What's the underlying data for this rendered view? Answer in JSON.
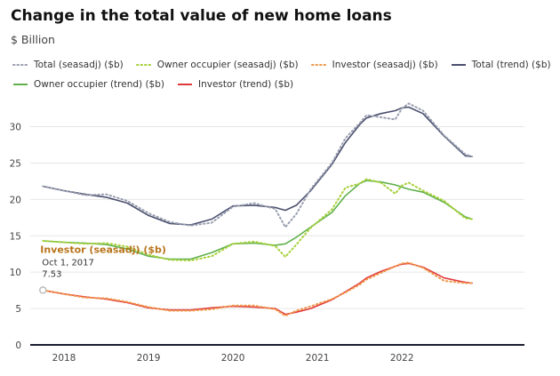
{
  "page": {
    "title": "Change in the total value of new home loans",
    "subtitle": "$ Billion"
  },
  "tooltip": {
    "series": "Investor (seasadj) ($b)",
    "date": "Oct 1, 2017",
    "value": "7.53"
  },
  "chart_data": {
    "type": "line",
    "ylim": [
      0,
      33
    ],
    "xlim": [
      2017.6,
      2023.45
    ],
    "y_ticks": [
      0,
      5,
      10,
      15,
      20,
      25,
      30
    ],
    "x_ticks": [
      {
        "value": 2018.0,
        "label": "2018"
      },
      {
        "value": 2019.0,
        "label": "2019"
      },
      {
        "value": 2020.0,
        "label": "2020"
      },
      {
        "value": 2021.0,
        "label": "2021"
      },
      {
        "value": 2022.0,
        "label": "2022"
      }
    ],
    "grid": true,
    "legend": "top",
    "series": [
      {
        "name": "Total (seasadj) ($b)",
        "color": "#9a9fb0",
        "style": "dotted",
        "points": [
          [
            2017.75,
            21.8
          ],
          [
            2018.0,
            21.2
          ],
          [
            2018.25,
            20.6
          ],
          [
            2018.5,
            20.7
          ],
          [
            2018.75,
            19.8
          ],
          [
            2019.0,
            18.1
          ],
          [
            2019.25,
            16.9
          ],
          [
            2019.5,
            16.4
          ],
          [
            2019.75,
            16.8
          ],
          [
            2020.0,
            19.0
          ],
          [
            2020.25,
            19.5
          ],
          [
            2020.5,
            18.7
          ],
          [
            2020.62,
            16.2
          ],
          [
            2020.75,
            18.0
          ],
          [
            2020.92,
            21.4
          ],
          [
            2021.17,
            25.0
          ],
          [
            2021.33,
            28.4
          ],
          [
            2021.5,
            30.5
          ],
          [
            2021.58,
            31.6
          ],
          [
            2021.75,
            31.3
          ],
          [
            2021.92,
            31.0
          ],
          [
            2022.0,
            32.5
          ],
          [
            2022.08,
            33.2
          ],
          [
            2022.25,
            32.2
          ],
          [
            2022.5,
            28.8
          ],
          [
            2022.75,
            26.2
          ],
          [
            2022.83,
            25.9
          ]
        ]
      },
      {
        "name": "Owner occupier (seasadj) ($b)",
        "color": "#a8d13a",
        "style": "dotted",
        "points": [
          [
            2017.75,
            14.3
          ],
          [
            2018.0,
            14.1
          ],
          [
            2018.25,
            13.9
          ],
          [
            2018.5,
            14.0
          ],
          [
            2018.75,
            13.5
          ],
          [
            2019.0,
            12.4
          ],
          [
            2019.25,
            11.7
          ],
          [
            2019.5,
            11.6
          ],
          [
            2019.75,
            12.2
          ],
          [
            2020.0,
            13.9
          ],
          [
            2020.25,
            14.2
          ],
          [
            2020.5,
            13.6
          ],
          [
            2020.62,
            12.1
          ],
          [
            2020.75,
            13.8
          ],
          [
            2020.92,
            16.1
          ],
          [
            2021.17,
            18.6
          ],
          [
            2021.33,
            21.6
          ],
          [
            2021.5,
            22.2
          ],
          [
            2021.58,
            22.8
          ],
          [
            2021.75,
            22.3
          ],
          [
            2021.92,
            20.8
          ],
          [
            2022.0,
            21.9
          ],
          [
            2022.08,
            22.3
          ],
          [
            2022.25,
            21.2
          ],
          [
            2022.5,
            19.8
          ],
          [
            2022.75,
            17.4
          ],
          [
            2022.83,
            17.3
          ]
        ]
      },
      {
        "name": "Investor (seasadj) ($b)",
        "color": "#f0974a",
        "style": "dotted",
        "points": [
          [
            2017.75,
            7.53
          ],
          [
            2018.0,
            7.0
          ],
          [
            2018.25,
            6.5
          ],
          [
            2018.5,
            6.4
          ],
          [
            2018.75,
            5.9
          ],
          [
            2019.0,
            5.2
          ],
          [
            2019.25,
            4.7
          ],
          [
            2019.5,
            4.7
          ],
          [
            2019.75,
            4.9
          ],
          [
            2020.0,
            5.4
          ],
          [
            2020.25,
            5.4
          ],
          [
            2020.5,
            4.9
          ],
          [
            2020.62,
            4.0
          ],
          [
            2020.75,
            4.7
          ],
          [
            2020.92,
            5.3
          ],
          [
            2021.17,
            6.3
          ],
          [
            2021.33,
            7.2
          ],
          [
            2021.5,
            8.3
          ],
          [
            2021.58,
            9.0
          ],
          [
            2021.75,
            9.9
          ],
          [
            2021.92,
            10.8
          ],
          [
            2022.0,
            11.2
          ],
          [
            2022.08,
            11.3
          ],
          [
            2022.25,
            10.6
          ],
          [
            2022.5,
            8.8
          ],
          [
            2022.75,
            8.5
          ],
          [
            2022.83,
            8.5
          ]
        ]
      },
      {
        "name": "Total (trend) ($b)",
        "color": "#4a4f6e",
        "style": "solid",
        "points": [
          [
            2017.75,
            21.8
          ],
          [
            2018.0,
            21.2
          ],
          [
            2018.25,
            20.7
          ],
          [
            2018.5,
            20.3
          ],
          [
            2018.75,
            19.5
          ],
          [
            2019.0,
            17.8
          ],
          [
            2019.25,
            16.7
          ],
          [
            2019.5,
            16.5
          ],
          [
            2019.75,
            17.3
          ],
          [
            2020.0,
            19.1
          ],
          [
            2020.25,
            19.2
          ],
          [
            2020.5,
            18.9
          ],
          [
            2020.62,
            18.5
          ],
          [
            2020.75,
            19.2
          ],
          [
            2020.92,
            21.2
          ],
          [
            2021.17,
            24.8
          ],
          [
            2021.33,
            27.8
          ],
          [
            2021.5,
            30.3
          ],
          [
            2021.58,
            31.2
          ],
          [
            2021.75,
            31.8
          ],
          [
            2021.92,
            32.2
          ],
          [
            2022.0,
            32.6
          ],
          [
            2022.08,
            32.7
          ],
          [
            2022.25,
            31.8
          ],
          [
            2022.5,
            28.7
          ],
          [
            2022.75,
            26.0
          ],
          [
            2022.83,
            25.9
          ]
        ]
      },
      {
        "name": "Owner occupier (trend) ($b)",
        "color": "#5fb04a",
        "style": "solid",
        "points": [
          [
            2017.75,
            14.3
          ],
          [
            2018.0,
            14.1
          ],
          [
            2018.25,
            14.0
          ],
          [
            2018.5,
            13.8
          ],
          [
            2018.75,
            13.2
          ],
          [
            2019.0,
            12.2
          ],
          [
            2019.25,
            11.8
          ],
          [
            2019.5,
            11.8
          ],
          [
            2019.75,
            12.7
          ],
          [
            2020.0,
            13.9
          ],
          [
            2020.25,
            14.0
          ],
          [
            2020.5,
            13.7
          ],
          [
            2020.62,
            13.9
          ],
          [
            2020.75,
            14.8
          ],
          [
            2020.92,
            16.2
          ],
          [
            2021.17,
            18.2
          ],
          [
            2021.33,
            20.5
          ],
          [
            2021.5,
            22.2
          ],
          [
            2021.58,
            22.6
          ],
          [
            2021.75,
            22.4
          ],
          [
            2021.92,
            22.0
          ],
          [
            2022.0,
            21.7
          ],
          [
            2022.08,
            21.4
          ],
          [
            2022.25,
            21.0
          ],
          [
            2022.5,
            19.6
          ],
          [
            2022.75,
            17.6
          ],
          [
            2022.83,
            17.3
          ]
        ]
      },
      {
        "name": "Investor (trend) ($b)",
        "color": "#e0393a",
        "style": "solid",
        "points": [
          [
            2017.75,
            7.5
          ],
          [
            2018.0,
            7.0
          ],
          [
            2018.25,
            6.6
          ],
          [
            2018.5,
            6.3
          ],
          [
            2018.75,
            5.8
          ],
          [
            2019.0,
            5.1
          ],
          [
            2019.25,
            4.8
          ],
          [
            2019.5,
            4.8
          ],
          [
            2019.75,
            5.1
          ],
          [
            2020.0,
            5.3
          ],
          [
            2020.25,
            5.2
          ],
          [
            2020.5,
            5.0
          ],
          [
            2020.62,
            4.2
          ],
          [
            2020.75,
            4.5
          ],
          [
            2020.92,
            5.0
          ],
          [
            2021.17,
            6.2
          ],
          [
            2021.33,
            7.3
          ],
          [
            2021.5,
            8.5
          ],
          [
            2021.58,
            9.2
          ],
          [
            2021.75,
            10.1
          ],
          [
            2021.92,
            10.8
          ],
          [
            2022.0,
            11.1
          ],
          [
            2022.08,
            11.2
          ],
          [
            2022.25,
            10.7
          ],
          [
            2022.5,
            9.2
          ],
          [
            2022.75,
            8.6
          ],
          [
            2022.83,
            8.5
          ]
        ]
      }
    ]
  }
}
